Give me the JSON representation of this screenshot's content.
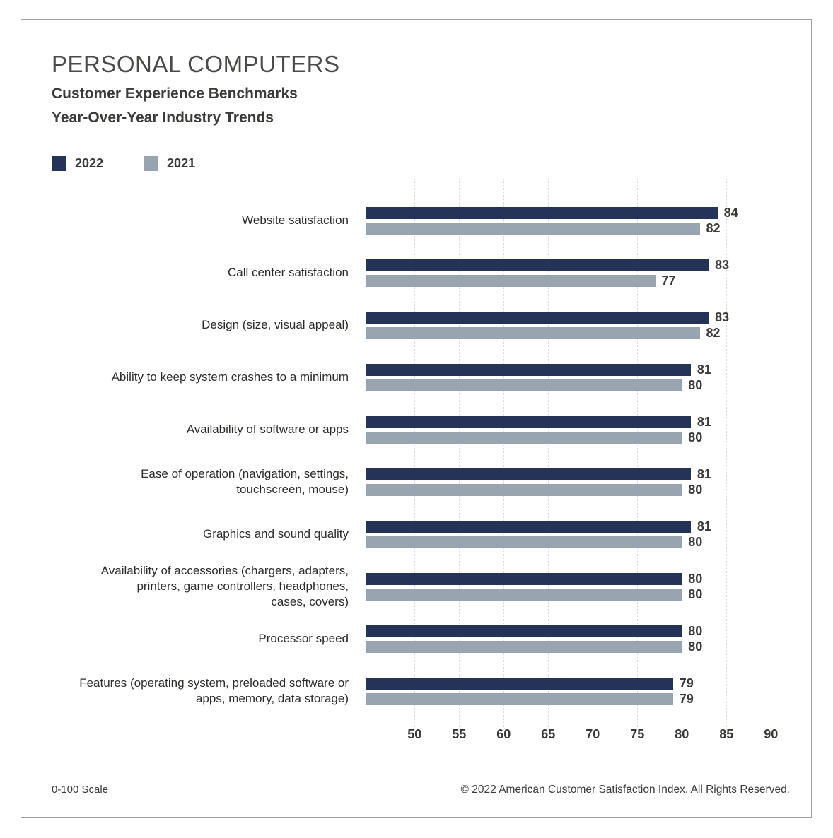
{
  "chart_data": {
    "type": "bar",
    "orientation": "horizontal",
    "title": "PERSONAL COMPUTERS",
    "subtitle1": "Customer Experience Benchmarks",
    "subtitle2": "Year-Over-Year Industry Trends",
    "categories": [
      "Website satisfaction",
      "Call center satisfaction",
      "Design (size, visual appeal)",
      "Ability to keep system crashes to a minimum",
      "Availability of software or apps",
      "Ease of operation (navigation, settings,\ntouchscreen, mouse)",
      "Graphics and sound quality",
      "Availability of accessories (chargers, adapters,\nprinters, game controllers, headphones,\ncases, covers)",
      "Processor speed",
      "Features (operating system, preloaded software or\napps, memory, data storage)"
    ],
    "series": [
      {
        "name": "2022",
        "color": "#253358",
        "values": [
          84,
          83,
          83,
          81,
          81,
          81,
          81,
          80,
          80,
          79
        ]
      },
      {
        "name": "2021",
        "color": "#99A4B1",
        "values": [
          82,
          77,
          82,
          80,
          80,
          80,
          80,
          80,
          80,
          79
        ]
      }
    ],
    "xlim": [
      44.5,
      92
    ],
    "x_ticks": [
      50,
      55,
      60,
      65,
      70,
      75,
      80,
      85,
      90
    ],
    "grid": "dotted-vertical",
    "legend_position": "top-left",
    "value_labels": "end-of-bar"
  },
  "footer": {
    "scale_label": "0-100 Scale",
    "copyright": "© 2022 American Customer Satisfaction Index. All Rights Reserved."
  }
}
